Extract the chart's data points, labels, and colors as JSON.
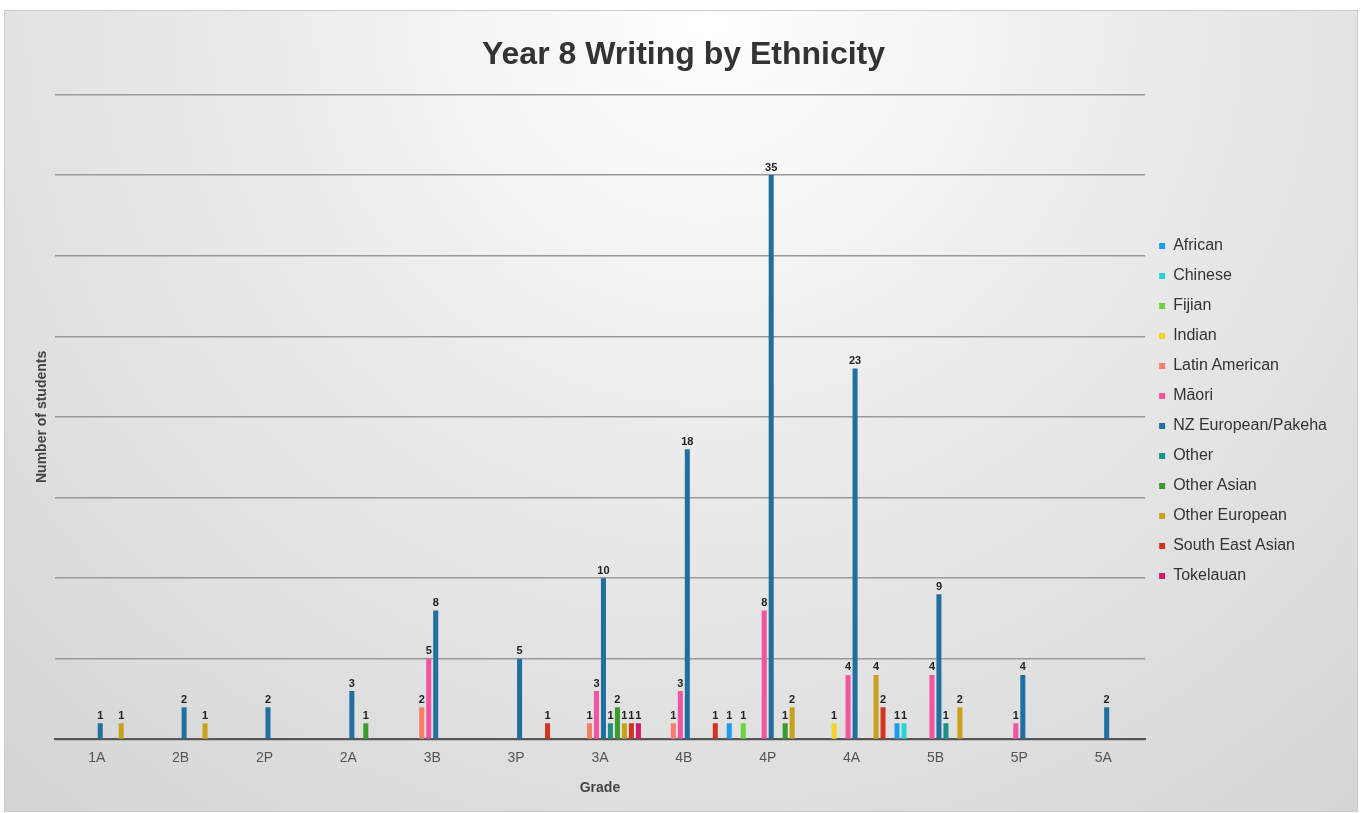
{
  "chart_data": {
    "type": "bar",
    "title": "Year 8 Writing by Ethnicity",
    "xlabel": "Grade",
    "ylabel": "Number of students",
    "categories": [
      "1A",
      "2B",
      "2P",
      "2A",
      "3B",
      "3P",
      "3A",
      "4B",
      "4P",
      "4A",
      "5B",
      "5P",
      "5A"
    ],
    "series": [
      {
        "name": "African",
        "color": "#1e9bf0",
        "values": [
          null,
          null,
          null,
          null,
          null,
          null,
          null,
          null,
          1,
          null,
          1,
          null,
          null
        ]
      },
      {
        "name": "Chinese",
        "color": "#2ad4d4",
        "values": [
          null,
          null,
          null,
          null,
          null,
          null,
          null,
          null,
          null,
          null,
          1,
          null,
          null
        ]
      },
      {
        "name": "Fijian",
        "color": "#6cd43c",
        "values": [
          null,
          null,
          null,
          null,
          null,
          null,
          null,
          null,
          1,
          null,
          null,
          null,
          null
        ]
      },
      {
        "name": "Indian",
        "color": "#f5d327",
        "values": [
          null,
          null,
          null,
          null,
          null,
          null,
          null,
          null,
          null,
          1,
          null,
          null,
          null
        ]
      },
      {
        "name": "Latin American",
        "color": "#f77e6a",
        "values": [
          null,
          null,
          null,
          null,
          2,
          null,
          1,
          1,
          null,
          null,
          null,
          null,
          null
        ]
      },
      {
        "name": "Māori",
        "color": "#f2549e",
        "values": [
          null,
          null,
          null,
          null,
          5,
          null,
          3,
          3,
          8,
          4,
          4,
          1,
          null
        ]
      },
      {
        "name": "NZ European/Pakeha",
        "color": "#1f6fa0",
        "values": [
          1,
          2,
          2,
          3,
          8,
          5,
          10,
          18,
          35,
          23,
          9,
          4,
          2
        ]
      },
      {
        "name": "Other",
        "color": "#1f8f86",
        "values": [
          null,
          null,
          null,
          null,
          null,
          null,
          1,
          null,
          null,
          null,
          1,
          null,
          null
        ]
      },
      {
        "name": "Other Asian",
        "color": "#3d9a2e",
        "values": [
          null,
          null,
          null,
          1,
          null,
          null,
          2,
          null,
          1,
          null,
          null,
          null,
          null
        ]
      },
      {
        "name": "Other European",
        "color": "#c9a21b",
        "values": [
          1,
          1,
          null,
          null,
          null,
          null,
          1,
          null,
          2,
          4,
          2,
          null,
          null
        ]
      },
      {
        "name": "South East Asian",
        "color": "#d1351f",
        "values": [
          null,
          null,
          null,
          null,
          null,
          1,
          1,
          1,
          null,
          2,
          null,
          null,
          null
        ]
      },
      {
        "name": "Tokelauan",
        "color": "#cc1d6b",
        "values": [
          null,
          null,
          null,
          null,
          null,
          null,
          1,
          null,
          null,
          null,
          null,
          null,
          null
        ]
      }
    ],
    "ylim": [
      0,
      40
    ],
    "yticks": [
      {
        "value": 0,
        "label": null
      },
      {
        "value": 5,
        "label": null
      },
      {
        "value": 10,
        "label": null
      },
      {
        "value": 15,
        "label": null
      },
      {
        "value": 20,
        "label": null
      },
      {
        "value": 25,
        "label": null
      },
      {
        "value": 30,
        "label": null
      },
      {
        "value": 35,
        "label": null
      },
      {
        "value": 40,
        "label": null
      }
    ],
    "tick_labels": "x",
    "grid": "y",
    "legend": "right",
    "data_labels": true
  }
}
